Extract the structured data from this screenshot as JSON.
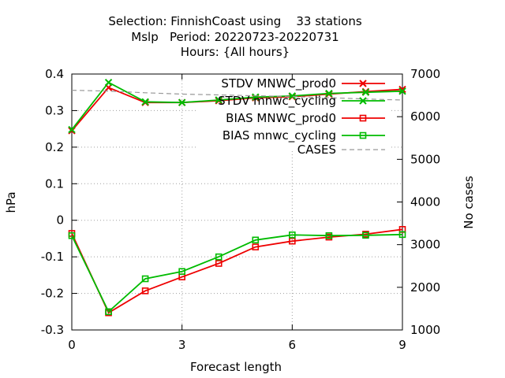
{
  "title_lines": [
    "Selection: FinnishCoast using    33 stations",
    "Mslp   Period: 20220723-20220731",
    "Hours: {All hours}"
  ],
  "chart_data": {
    "type": "line",
    "xlabel": "Forecast length",
    "ylabel": "hPa",
    "y2label": "No cases",
    "xlim": [
      0,
      9
    ],
    "ylim": [
      -0.3,
      0.4
    ],
    "y2lim": [
      1000,
      7000
    ],
    "x_ticks": [
      "0",
      "3",
      "6",
      "9"
    ],
    "y_ticks": [
      "-0.3",
      "-0.2",
      "-0.1",
      "0",
      "0.1",
      "0.2",
      "0.3",
      "0.4"
    ],
    "y2_ticks": [
      "1000",
      "2000",
      "3000",
      "4000",
      "5000",
      "6000",
      "7000"
    ],
    "grid": true,
    "legend_position": "top-right",
    "x": [
      0,
      1,
      2,
      3,
      4,
      5,
      6,
      7,
      8,
      9
    ],
    "series": [
      {
        "name": "STDV MNWC_prod0",
        "color": "#ee0000",
        "marker": "x-icon",
        "axis": "y",
        "values": [
          0.245,
          0.363,
          0.322,
          0.322,
          0.327,
          0.335,
          0.338,
          0.345,
          0.352,
          0.358
        ]
      },
      {
        "name": "STDV mnwc_cycling",
        "color": "#00bb00",
        "marker": "x-icon",
        "axis": "y",
        "values": [
          0.248,
          0.377,
          0.324,
          0.322,
          0.329,
          0.337,
          0.34,
          0.347,
          0.35,
          0.353
        ]
      },
      {
        "name": "BIAS MNWC_prod0",
        "color": "#ee0000",
        "marker": "square-icon",
        "axis": "y",
        "values": [
          -0.036,
          -0.253,
          -0.193,
          -0.155,
          -0.118,
          -0.073,
          -0.057,
          -0.046,
          -0.038,
          -0.025
        ]
      },
      {
        "name": "BIAS mnwc_cycling",
        "color": "#00bb00",
        "marker": "square-icon",
        "axis": "y",
        "values": [
          -0.042,
          -0.25,
          -0.16,
          -0.14,
          -0.1,
          -0.054,
          -0.04,
          -0.042,
          -0.041,
          -0.039
        ]
      },
      {
        "name": "CASES",
        "color": "#999999",
        "marker": "none",
        "dash": true,
        "axis": "y2",
        "values": [
          6620,
          6600,
          6560,
          6530,
          6510,
          6490,
          6470,
          6445,
          6415,
          6390
        ]
      }
    ]
  }
}
